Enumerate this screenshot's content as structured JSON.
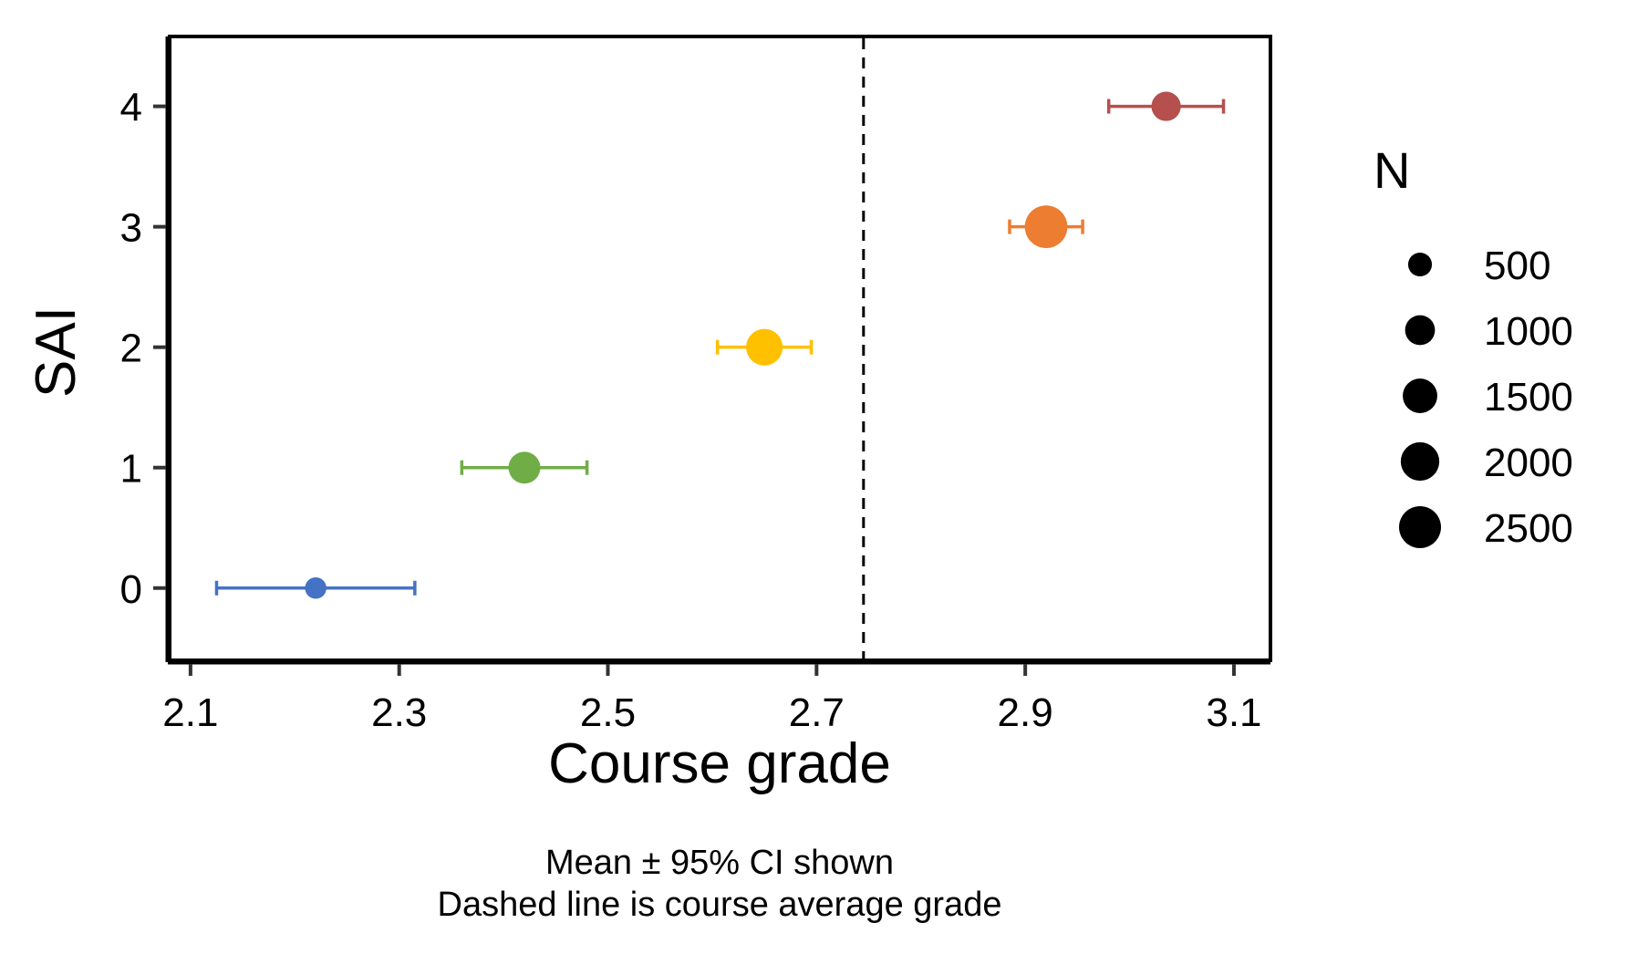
{
  "chart_data": {
    "type": "scatter",
    "xlabel": "Course grade",
    "ylabel": "SAI",
    "xlim": [
      2.08,
      3.135
    ],
    "ylim": [
      -0.6,
      4.58
    ],
    "x_ticks": [
      "2.1",
      "2.3",
      "2.5",
      "2.7",
      "2.9",
      "3.1"
    ],
    "y_ticks": [
      "0",
      "1",
      "2",
      "3",
      "4"
    ],
    "grid": false,
    "reference_line": {
      "x": 2.745,
      "style": "dashed",
      "color": "#000000"
    },
    "points": [
      {
        "sai": 0,
        "mean": 2.22,
        "ci_low": 2.125,
        "ci_high": 2.315,
        "n": 350,
        "color": "#4472C4"
      },
      {
        "sai": 1,
        "mean": 2.42,
        "ci_low": 2.36,
        "ci_high": 2.48,
        "n": 1200,
        "color": "#70AD47"
      },
      {
        "sai": 2,
        "mean": 2.65,
        "ci_low": 2.605,
        "ci_high": 2.695,
        "n": 1750,
        "color": "#FFC000"
      },
      {
        "sai": 3,
        "mean": 2.92,
        "ci_low": 2.885,
        "ci_high": 2.955,
        "n": 2600,
        "color": "#ED7D31"
      },
      {
        "sai": 4,
        "mean": 3.035,
        "ci_low": 2.98,
        "ci_high": 3.09,
        "n": 950,
        "color": "#B5504E"
      }
    ],
    "legend": {
      "title": "N",
      "placement": "right",
      "entries": [
        {
          "label": "500",
          "n": 500
        },
        {
          "label": "1000",
          "n": 1000
        },
        {
          "label": "1500",
          "n": 1500
        },
        {
          "label": "2000",
          "n": 2000
        },
        {
          "label": "2500",
          "n": 2500
        }
      ]
    },
    "caption": [
      "Mean ± 95% CI shown",
      "Dashed line is course average grade"
    ]
  }
}
